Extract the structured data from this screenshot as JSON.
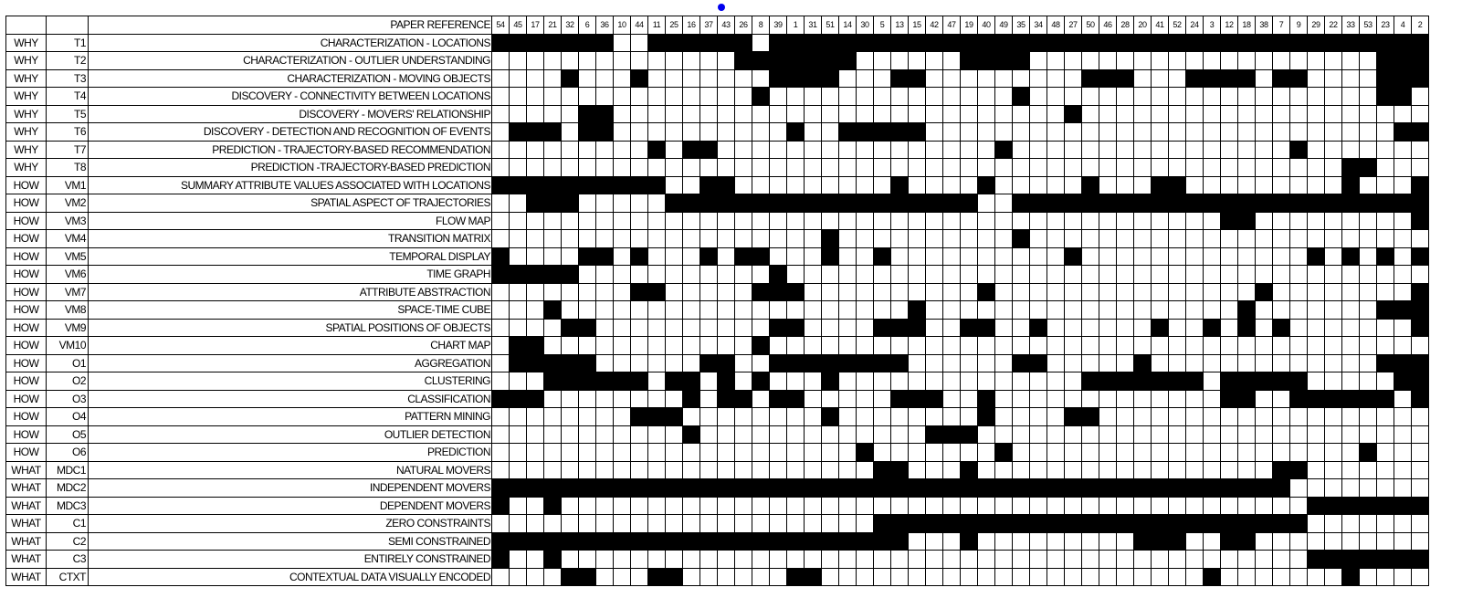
{
  "header": {
    "label": "PAPER REFERENCE"
  },
  "refs": [
    "54",
    "45",
    "17",
    "21",
    "32",
    "6",
    "36",
    "10",
    "44",
    "11",
    "25",
    "16",
    "37",
    "43",
    "26",
    "8",
    "39",
    "1",
    "31",
    "51",
    "14",
    "30",
    "5",
    "13",
    "15",
    "42",
    "47",
    "19",
    "40",
    "49",
    "35",
    "34",
    "48",
    "27",
    "50",
    "46",
    "28",
    "20",
    "41",
    "52",
    "24",
    "3",
    "12",
    "18",
    "38",
    "7",
    "9",
    "29",
    "22",
    "33",
    "53",
    "23",
    "4",
    "2"
  ],
  "group_starts": [
    8,
    18,
    24,
    27,
    30
  ],
  "rows": [
    {
      "why": "WHY",
      "code": "T1",
      "label": "CHARACTERIZATION - LOCATIONS",
      "cells": "111111100111111011111111111111111111111111111111111111"
    },
    {
      "why": "WHY",
      "code": "T2",
      "label": "CHARACTERIZATION - OUTLIER UNDERSTANDING",
      "cells": "000000000000001111111000000111100000000000000000000111"
    },
    {
      "why": "WHY",
      "code": "T3",
      "label": "CHARACTERIZATION - MOVING OBJECTS",
      "cells": "000010001000000011110001100000000011100011110110000111"
    },
    {
      "why": "WHY",
      "code": "T4",
      "label": "DISCOVERY - CONNECTIVITY BETWEEN LOCATIONS",
      "cells": "000000000000000100000000000000100000000000000000000110"
    },
    {
      "why": "WHY",
      "code": "T5",
      "label": "DISCOVERY - MOVERS' RELATIONSHIP",
      "cells": "000001100000000000000000000000000100000000000000000000"
    },
    {
      "why": "WHY",
      "code": "T6",
      "label": "DISCOVERY - DETECTION AND RECOGNITION OF EVENTS",
      "cells": "011101100000000001001111100000000000000000000000000011"
    },
    {
      "why": "WHY",
      "code": "T7",
      "label": "PREDICTION - TRAJECTORY-BASED RECOMMENDATION",
      "cells": "000000000101100000000000000001000000000000000010000000"
    },
    {
      "why": "WHY",
      "code": "T8",
      "label": "PREDICTION -TRAJECTORY-BASED PREDICTION",
      "cells": "000000000000000000000000000000000000000000000000011000"
    },
    {
      "why": "HOW",
      "code": "VM1",
      "label": "SUMMARY ATTRIBUTE VALUES ASSOCIATED WITH LOCATIONS",
      "cells": "111111111100110000000001000010000010001100000000010001"
    },
    {
      "why": "HOW",
      "code": "VM2",
      "label": "SPATIAL ASPECT OF TRAJECTORIES",
      "cells": "001110000011111111111111111100111111111111111111111111"
    },
    {
      "why": "HOW",
      "code": "VM3",
      "label": "FLOW MAP",
      "cells": "000000000000000000000000000000000000000000110000000001"
    },
    {
      "why": "HOW",
      "code": "VM4",
      "label": "TRANSITION MATRIX",
      "cells": "000000000000000000010000000000100000000000000000000000"
    },
    {
      "why": "HOW",
      "code": "VM5",
      "label": "TEMPORAL DISPLAY",
      "cells": "100001101000101100010010000000000100000000000001010101"
    },
    {
      "why": "HOW",
      "code": "VM6",
      "label": "TIME GRAPH",
      "cells": "111110000000000010000000000000000000000000000000000000"
    },
    {
      "why": "HOW",
      "code": "VM7",
      "label": "ATTRIBUTE ABSTRACTION",
      "cells": "000000001100000111000000000010000000000000001000000001"
    },
    {
      "why": "HOW",
      "code": "VM8",
      "label": "SPACE-TIME CUBE",
      "cells": "000100000000000000000000100000000000000000010000000111"
    },
    {
      "why": "HOW",
      "code": "VM9",
      "label": "SPATIAL POSITIONS OF OBJECTS",
      "cells": "000011000000000011000011100110010000001001010100000001"
    },
    {
      "why": "HOW",
      "code": "VM10",
      "label": "CHART MAP",
      "cells": "011000000000000100000000000000000000000000000000000000"
    },
    {
      "why": "HOW",
      "code": "O1",
      "label": "AGGREGATION",
      "cells": "011111000000110011111111000000110000010000000000000111"
    },
    {
      "why": "HOW",
      "code": "O2",
      "label": "CLUSTERING",
      "cells": "000111111011010100010000000000000011111110111110000011"
    },
    {
      "why": "HOW",
      "code": "O3",
      "label": "CLASSIFICATION",
      "cells": "111000000001011011000001110010000000000000110011111101"
    },
    {
      "why": "HOW",
      "code": "O4",
      "label": "PATTERN MINING",
      "cells": "000000001110000000010000000010000110000000000000000000"
    },
    {
      "why": "HOW",
      "code": "O5",
      "label": "OUTLIER DETECTION",
      "cells": "000000000001000000000000011100000000000000000000000000"
    },
    {
      "why": "HOW",
      "code": "O6",
      "label": "PREDICTION",
      "cells": "000000000000000000000100000001000000000000000000001000"
    },
    {
      "why": "WHAT",
      "code": "MDC1",
      "label": "NATURAL MOVERS",
      "cells": "000000000000000000000011000100000000000000000110000000"
    },
    {
      "why": "WHAT",
      "code": "MDC2",
      "label": "INDEPENDENT MOVERS",
      "cells": "111111111111111111111111111111111111111111111100000000"
    },
    {
      "why": "WHAT",
      "code": "MDC3",
      "label": "DEPENDENT MOVERS",
      "cells": "100100000000000000000000000000000000000000000001111111"
    },
    {
      "why": "WHAT",
      "code": "C1",
      "label": "ZERO CONSTRAINTS",
      "cells": "000000000000000000000011111111111111111111111110000000"
    },
    {
      "why": "WHAT",
      "code": "C2",
      "label": "SEMI CONSTRAINED",
      "cells": "111111111111111111111111000100000000011100110000000000"
    },
    {
      "why": "WHAT",
      "code": "C3",
      "label": "ENTIRELY CONSTRAINED",
      "cells": "100100000000000000000000000000000000000000000001111111"
    },
    {
      "why": "WHAT",
      "code": "CTXT",
      "label": "CONTEXTUAL DATA VISUALLY ENCODED",
      "cells": "000011000110000001100000000000000000000001000000010000"
    }
  ]
}
